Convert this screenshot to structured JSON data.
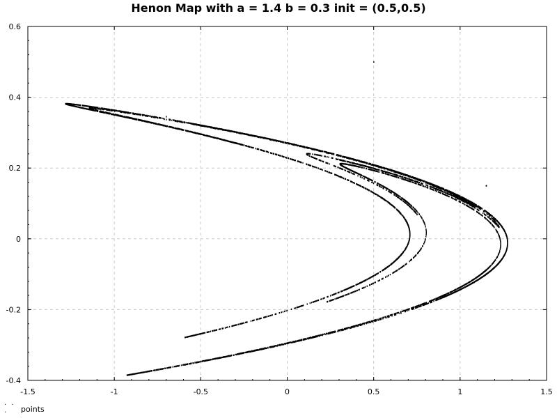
{
  "chart_data": {
    "type": "scatter",
    "title": "Henon Map with a = 1.4 b = 0.3 init = (0.5,0.5)",
    "xlabel": "",
    "ylabel": "",
    "xlim": [
      -1.5,
      1.5
    ],
    "ylim": [
      -0.4,
      0.6
    ],
    "x_ticks": [
      "-1.5",
      "-1",
      "-0.5",
      "0",
      "0.5",
      "1",
      "1.5"
    ],
    "y_ticks": [
      "-0.4",
      "-0.2",
      "0",
      "0.2",
      "0.4",
      "0.6"
    ],
    "grid": true,
    "legend_position": "bottom-left",
    "series": [
      {
        "name": "points",
        "color": "#000000",
        "generator": {
          "map": "henon",
          "a": 1.4,
          "b": 0.3,
          "init": [
            0.5,
            0.5
          ],
          "iterations": 8000
        },
        "highlighted_points": [
          [
            0.5,
            0.5
          ],
          [
            1.15,
            0.15
          ]
        ]
      }
    ]
  },
  "legend": {
    "marker": "· · ·",
    "label": "points"
  }
}
